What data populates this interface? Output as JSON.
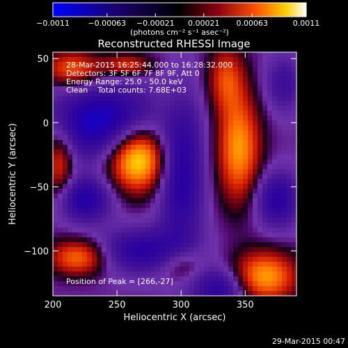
{
  "footer_timestamp": "29-Mar-2015 00:47",
  "chart_data": {
    "type": "heatmap",
    "title": "Reconstructed RHESSI Image",
    "xlabel": "Heliocentric X (arcsec)",
    "ylabel": "Heliocentric Y (arcsec)",
    "xlim": [
      200,
      390
    ],
    "ylim": [
      -135,
      55
    ],
    "x_ticks": [
      200,
      250,
      300,
      350
    ],
    "y_ticks": [
      50,
      0,
      -50,
      -100
    ],
    "colorbar": {
      "range": [
        -0.0011,
        0.0011
      ],
      "tick_values": [
        -0.0011,
        -0.00063,
        -0.00021,
        0.00021,
        0.00063,
        0.0011
      ],
      "tick_labels": [
        "-0.0011",
        "-0.00063",
        "-0.00021",
        "0.00021",
        "0.00063",
        "0.0011"
      ],
      "units_label": "(photons cm⁻² s⁻¹ asec⁻²)"
    },
    "info_lines": [
      "28-Mar-2015 16:25:44.000 to 16:28:32.000",
      "Detectors: 3F 5F 6F 7F 8F 9F, Att 0",
      "Energy Range: 25.0 - 50.0 keV",
      "Clean    Total counts: 7.68E+03"
    ],
    "peak_label": "Position of Peak = [266,-27]",
    "peak": [
      266,
      -27
    ],
    "sources": [
      {
        "x": 266,
        "y": -27,
        "sx": 16,
        "sy": 18,
        "amp": 1.0
      },
      {
        "x": 345,
        "y": -20,
        "sx": 12,
        "sy": 30,
        "amp": 0.7
      },
      {
        "x": 335,
        "y": 35,
        "sx": 10,
        "sy": 18,
        "amp": 0.45
      },
      {
        "x": 220,
        "y": -105,
        "sx": 16,
        "sy": 10,
        "amp": 0.62
      },
      {
        "x": 365,
        "y": -120,
        "sx": 18,
        "sy": 14,
        "amp": 0.72
      },
      {
        "x": 205,
        "y": -30,
        "sx": 8,
        "sy": 20,
        "amp": 0.5
      },
      {
        "x": 215,
        "y": 42,
        "sx": 16,
        "sy": 10,
        "amp": 0.55
      },
      {
        "x": 258,
        "y": 45,
        "sx": 14,
        "sy": 6,
        "amp": 0.45
      },
      {
        "x": 300,
        "y": -110,
        "sx": 12,
        "sy": 10,
        "amp": 0.35
      },
      {
        "x": 290,
        "y": 10,
        "sx": 10,
        "sy": 15,
        "amp": 0.1
      },
      {
        "x": 240,
        "y": 0,
        "sx": 30,
        "sy": 20,
        "amp": -0.75
      },
      {
        "x": 300,
        "y": -40,
        "sx": 12,
        "sy": 40,
        "amp": -0.6
      },
      {
        "x": 225,
        "y": -60,
        "sx": 14,
        "sy": 12,
        "amp": -0.6
      },
      {
        "x": 270,
        "y": -100,
        "sx": 25,
        "sy": 12,
        "amp": -0.55
      },
      {
        "x": 375,
        "y": -60,
        "sx": 12,
        "sy": 15,
        "amp": -0.55
      },
      {
        "x": 330,
        "y": -130,
        "sx": 15,
        "sy": 12,
        "amp": -0.55
      },
      {
        "x": 380,
        "y": 30,
        "sx": 10,
        "sy": 15,
        "amp": -0.35
      }
    ]
  }
}
